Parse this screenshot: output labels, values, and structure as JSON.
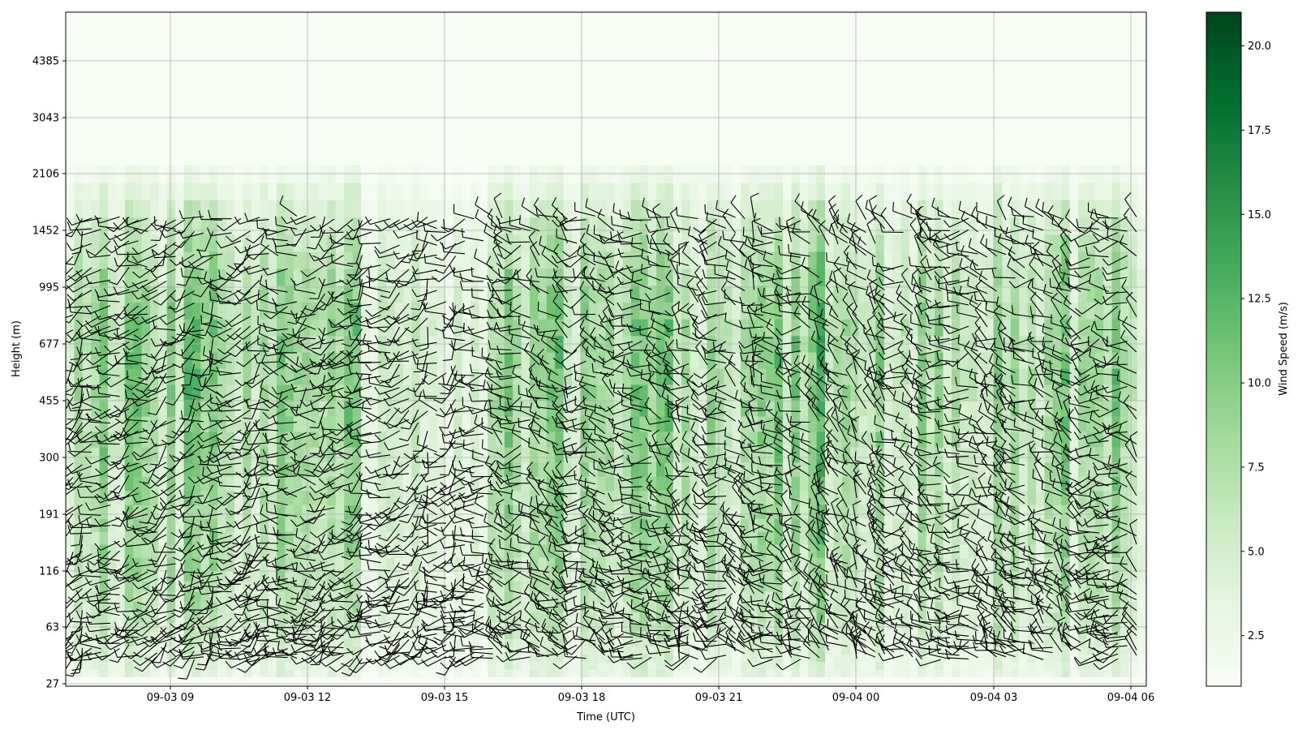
{
  "chart_data": {
    "type": "heatmap",
    "title": "",
    "xlabel": "Time (UTC)",
    "ylabel": "Height (m)",
    "x_ticks": [
      "09-03 09",
      "09-03 12",
      "09-03 15",
      "09-03 18",
      "09-03 21",
      "09-04 00",
      "09-04 03",
      "09-04 06"
    ],
    "y_ticks": [
      "27",
      "63",
      "116",
      "191",
      "300",
      "455",
      "677",
      "995",
      "1452",
      "2106",
      "3043",
      "4385"
    ],
    "grid": true,
    "colorbar": {
      "label": "Wind Speed (m/s)",
      "range": [
        1.0,
        21.0
      ],
      "ticks": [
        "2.5",
        "5.0",
        "7.5",
        "10.0",
        "12.5",
        "15.0",
        "17.5",
        "20.0"
      ],
      "colormap": "Greens",
      "colors": [
        "#f7fcf5",
        "#e5f5e0",
        "#c7e9c0",
        "#a1d99b",
        "#74c476",
        "#41ab5d",
        "#238b45",
        "#006d2c",
        "#00441b"
      ]
    },
    "x_range": [
      "09-03 06:40",
      "09-04 06:20"
    ],
    "overlay": "wind barbs (black)",
    "speed_profile_by_height": [
      {
        "height": 27,
        "speed": 3.0
      },
      {
        "height": 63,
        "speed": 5.5
      },
      {
        "height": 116,
        "speed": 6.5
      },
      {
        "height": 191,
        "speed": 7.0
      },
      {
        "height": 300,
        "speed": 7.5
      },
      {
        "height": 455,
        "speed": 8.0
      },
      {
        "height": 677,
        "speed": 8.0
      },
      {
        "height": 995,
        "speed": 7.0
      },
      {
        "height": 1452,
        "speed": 5.0
      },
      {
        "height": 2106,
        "speed": 1.5
      }
    ]
  }
}
